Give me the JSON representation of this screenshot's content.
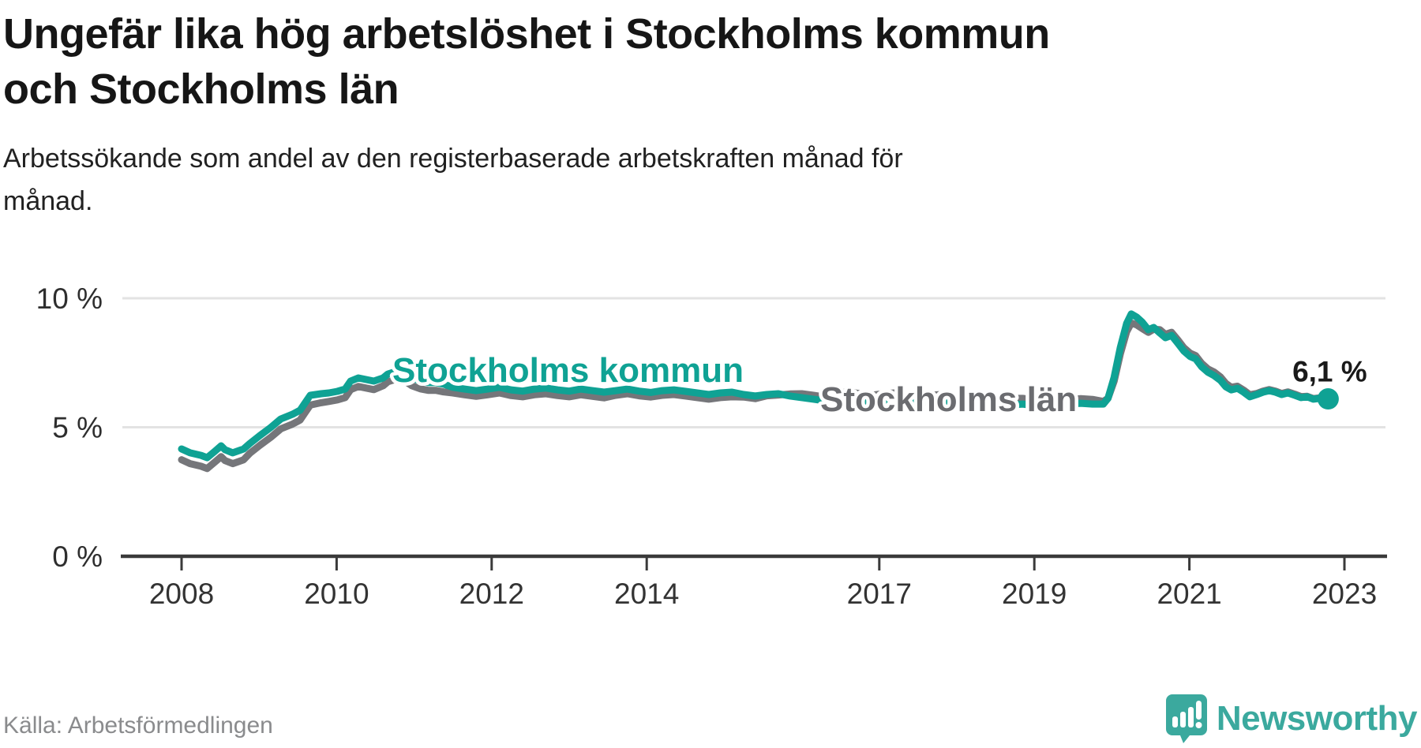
{
  "header": {
    "title_lines": [
      "Ungefär lika hög arbetslöshet i Stockholms kommun",
      "och Stockholms län"
    ],
    "subtitle_lines": [
      "Arbetssökande som andel av den registerbaserade arbetskraften månad för",
      "månad."
    ]
  },
  "footer": {
    "source": "Källa: Arbetsförmedlingen",
    "brand": "Newsworthy",
    "brand_color": "#3ba99e"
  },
  "chart_data": {
    "type": "line",
    "title": "Ungefär lika hög arbetslöshet i Stockholms kommun och Stockholms län",
    "xlabel": "",
    "ylabel": "",
    "unit": "%",
    "grid": "horizontal",
    "legend_position": "inline-labels",
    "x_ticks": [
      2008,
      2010,
      2012,
      2014,
      2017,
      2019,
      2021,
      2023
    ],
    "y_ticks": [
      0,
      5,
      10
    ],
    "y_tick_labels": [
      "0 %",
      "5 %",
      "10 %"
    ],
    "ylim": [
      0,
      11
    ],
    "xlim_years": [
      2007.7,
      2024.0
    ],
    "end_annotation": {
      "label": "6,1 %",
      "value": 6.1,
      "series": "Stockholms kommun"
    },
    "colors": {
      "kommun": "#0fa294",
      "lan": "#75767a",
      "grid": "#e3e3e3",
      "axis": "#3a3a3a",
      "tick_text": "#333333",
      "annotation_text": "#1a1a1a"
    },
    "series": [
      {
        "name": "Stockholms län",
        "color": "#75767a",
        "label_color": "#6b6c70",
        "points": [
          [
            2008.5,
            3.74
          ],
          [
            2008.61,
            3.59
          ],
          [
            2008.75,
            3.49
          ],
          [
            2008.83,
            3.4
          ],
          [
            2008.93,
            3.65
          ],
          [
            2009.01,
            3.86
          ],
          [
            2009.06,
            3.71
          ],
          [
            2009.16,
            3.59
          ],
          [
            2009.3,
            3.74
          ],
          [
            2009.38,
            3.99
          ],
          [
            2009.51,
            4.3
          ],
          [
            2009.65,
            4.61
          ],
          [
            2009.78,
            4.94
          ],
          [
            2009.93,
            5.12
          ],
          [
            2010.03,
            5.28
          ],
          [
            2010.09,
            5.55
          ],
          [
            2010.16,
            5.86
          ],
          [
            2010.3,
            5.95
          ],
          [
            2010.4,
            6.0
          ],
          [
            2010.51,
            6.06
          ],
          [
            2010.61,
            6.15
          ],
          [
            2010.68,
            6.46
          ],
          [
            2010.78,
            6.58
          ],
          [
            2010.88,
            6.52
          ],
          [
            2010.98,
            6.46
          ],
          [
            2011.1,
            6.61
          ],
          [
            2011.16,
            6.76
          ],
          [
            2011.26,
            6.86
          ],
          [
            2011.37,
            6.82
          ],
          [
            2011.47,
            6.61
          ],
          [
            2011.58,
            6.49
          ],
          [
            2011.68,
            6.43
          ],
          [
            2011.78,
            6.43
          ],
          [
            2011.88,
            6.37
          ],
          [
            2012,
            6.33
          ],
          [
            2012.15,
            6.26
          ],
          [
            2012.3,
            6.2
          ],
          [
            2012.45,
            6.26
          ],
          [
            2012.6,
            6.33
          ],
          [
            2012.75,
            6.23
          ],
          [
            2012.9,
            6.18
          ],
          [
            2013.05,
            6.26
          ],
          [
            2013.2,
            6.3
          ],
          [
            2013.35,
            6.23
          ],
          [
            2013.5,
            6.18
          ],
          [
            2013.65,
            6.26
          ],
          [
            2013.8,
            6.2
          ],
          [
            2013.95,
            6.14
          ],
          [
            2014.1,
            6.24
          ],
          [
            2014.25,
            6.3
          ],
          [
            2014.4,
            6.22
          ],
          [
            2014.55,
            6.17
          ],
          [
            2014.7,
            6.24
          ],
          [
            2014.85,
            6.27
          ],
          [
            2015,
            6.21
          ],
          [
            2015.15,
            6.15
          ],
          [
            2015.3,
            6.09
          ],
          [
            2015.45,
            6.15
          ],
          [
            2015.6,
            6.18
          ],
          [
            2015.75,
            6.17
          ],
          [
            2015.9,
            6.11
          ],
          [
            2016.05,
            6.22
          ],
          [
            2016.2,
            6.25
          ],
          [
            2016.35,
            6.29
          ],
          [
            2016.5,
            6.3
          ],
          [
            2016.65,
            6.24
          ],
          [
            2016.8,
            6.17
          ],
          [
            2016.95,
            6.33
          ],
          [
            2017.1,
            6.37
          ],
          [
            2017.25,
            6.3
          ],
          [
            2017.4,
            6.24
          ],
          [
            2017.55,
            6.3
          ],
          [
            2017.7,
            6.33
          ],
          [
            2017.85,
            6.24
          ],
          [
            2018,
            6.18
          ],
          [
            2018.15,
            6.24
          ],
          [
            2018.3,
            6.27
          ],
          [
            2018.45,
            6.18
          ],
          [
            2018.6,
            6.12
          ],
          [
            2018.75,
            6.18
          ],
          [
            2018.9,
            6.12
          ],
          [
            2019.05,
            6.06
          ],
          [
            2019.2,
            6.12
          ],
          [
            2019.35,
            6.12
          ],
          [
            2019.5,
            6.06
          ],
          [
            2019.65,
            6.03
          ],
          [
            2019.8,
            6.09
          ],
          [
            2019.96,
            6.08
          ],
          [
            2020.1,
            6.11
          ],
          [
            2020.25,
            6.08
          ],
          [
            2020.39,
            6.0
          ],
          [
            2020.45,
            6.12
          ],
          [
            2020.53,
            6.79
          ],
          [
            2020.61,
            7.85
          ],
          [
            2020.69,
            8.7
          ],
          [
            2020.75,
            9.04
          ],
          [
            2020.82,
            8.97
          ],
          [
            2020.89,
            8.83
          ],
          [
            2020.97,
            8.68
          ],
          [
            2021.04,
            8.8
          ],
          [
            2021.12,
            8.78
          ],
          [
            2021.19,
            8.6
          ],
          [
            2021.27,
            8.68
          ],
          [
            2021.35,
            8.39
          ],
          [
            2021.43,
            8.08
          ],
          [
            2021.51,
            7.87
          ],
          [
            2021.58,
            7.78
          ],
          [
            2021.66,
            7.47
          ],
          [
            2021.74,
            7.26
          ],
          [
            2021.82,
            7.14
          ],
          [
            2021.9,
            6.95
          ],
          [
            2021.97,
            6.7
          ],
          [
            2022.04,
            6.55
          ],
          [
            2022.12,
            6.59
          ],
          [
            2022.2,
            6.44
          ],
          [
            2022.28,
            6.26
          ],
          [
            2022.37,
            6.31
          ],
          [
            2022.45,
            6.4
          ],
          [
            2022.53,
            6.46
          ],
          [
            2022.61,
            6.4
          ],
          [
            2022.69,
            6.31
          ],
          [
            2022.77,
            6.37
          ],
          [
            2022.86,
            6.28
          ],
          [
            2022.94,
            6.19
          ],
          [
            2023.02,
            6.2
          ],
          [
            2023.1,
            6.11
          ],
          [
            2023.18,
            6.14
          ],
          [
            2023.29,
            6.1
          ]
        ]
      },
      {
        "name": "Stockholms kommun",
        "color": "#0fa294",
        "label_color": "#0fa294",
        "points": [
          [
            2008.5,
            4.16
          ],
          [
            2008.61,
            4.01
          ],
          [
            2008.75,
            3.91
          ],
          [
            2008.83,
            3.82
          ],
          [
            2008.93,
            4.07
          ],
          [
            2009.01,
            4.28
          ],
          [
            2009.06,
            4.13
          ],
          [
            2009.16,
            4.01
          ],
          [
            2009.3,
            4.16
          ],
          [
            2009.38,
            4.37
          ],
          [
            2009.51,
            4.68
          ],
          [
            2009.65,
            4.99
          ],
          [
            2009.78,
            5.32
          ],
          [
            2009.93,
            5.5
          ],
          [
            2010.03,
            5.66
          ],
          [
            2010.09,
            5.93
          ],
          [
            2010.16,
            6.24
          ],
          [
            2010.3,
            6.3
          ],
          [
            2010.4,
            6.33
          ],
          [
            2010.51,
            6.39
          ],
          [
            2010.61,
            6.48
          ],
          [
            2010.68,
            6.79
          ],
          [
            2010.78,
            6.91
          ],
          [
            2010.88,
            6.85
          ],
          [
            2010.98,
            6.79
          ],
          [
            2011.1,
            6.91
          ],
          [
            2011.16,
            7.06
          ],
          [
            2011.26,
            7.16
          ],
          [
            2011.37,
            7.12
          ],
          [
            2011.47,
            6.91
          ],
          [
            2011.58,
            6.79
          ],
          [
            2011.68,
            6.73
          ],
          [
            2011.78,
            6.73
          ],
          [
            2011.88,
            6.67
          ],
          [
            2012,
            6.55
          ],
          [
            2012.15,
            6.48
          ],
          [
            2012.3,
            6.42
          ],
          [
            2012.45,
            6.48
          ],
          [
            2012.6,
            6.55
          ],
          [
            2012.75,
            6.45
          ],
          [
            2012.9,
            6.4
          ],
          [
            2013.05,
            6.48
          ],
          [
            2013.2,
            6.52
          ],
          [
            2013.35,
            6.45
          ],
          [
            2013.5,
            6.4
          ],
          [
            2013.65,
            6.48
          ],
          [
            2013.8,
            6.42
          ],
          [
            2013.95,
            6.36
          ],
          [
            2014.1,
            6.42
          ],
          [
            2014.25,
            6.48
          ],
          [
            2014.4,
            6.4
          ],
          [
            2014.55,
            6.35
          ],
          [
            2014.7,
            6.42
          ],
          [
            2014.85,
            6.45
          ],
          [
            2015,
            6.39
          ],
          [
            2015.15,
            6.33
          ],
          [
            2015.3,
            6.27
          ],
          [
            2015.45,
            6.33
          ],
          [
            2015.6,
            6.36
          ],
          [
            2015.75,
            6.27
          ],
          [
            2015.9,
            6.21
          ],
          [
            2016.05,
            6.27
          ],
          [
            2016.2,
            6.3
          ],
          [
            2016.35,
            6.21
          ],
          [
            2016.5,
            6.15
          ],
          [
            2016.65,
            6.09
          ],
          [
            2016.8,
            6.02
          ],
          [
            2016.95,
            6.08
          ],
          [
            2017.1,
            6.12
          ],
          [
            2017.25,
            6.05
          ],
          [
            2017.4,
            5.99
          ],
          [
            2017.55,
            6.05
          ],
          [
            2017.7,
            6.08
          ],
          [
            2017.85,
            5.99
          ],
          [
            2018,
            5.93
          ],
          [
            2018.15,
            5.99
          ],
          [
            2018.3,
            6.02
          ],
          [
            2018.45,
            5.93
          ],
          [
            2018.6,
            5.87
          ],
          [
            2018.75,
            5.93
          ],
          [
            2018.9,
            5.87
          ],
          [
            2019.05,
            5.81
          ],
          [
            2019.2,
            5.87
          ],
          [
            2019.35,
            5.9
          ],
          [
            2019.5,
            5.84
          ],
          [
            2019.65,
            5.81
          ],
          [
            2019.8,
            5.87
          ],
          [
            2019.96,
            5.9
          ],
          [
            2020.1,
            5.93
          ],
          [
            2020.25,
            5.9
          ],
          [
            2020.39,
            5.9
          ],
          [
            2020.45,
            6.12
          ],
          [
            2020.53,
            6.94
          ],
          [
            2020.61,
            8.1
          ],
          [
            2020.69,
            9.02
          ],
          [
            2020.75,
            9.39
          ],
          [
            2020.82,
            9.27
          ],
          [
            2020.89,
            9.08
          ],
          [
            2020.97,
            8.78
          ],
          [
            2021.04,
            8.87
          ],
          [
            2021.12,
            8.65
          ],
          [
            2021.19,
            8.47
          ],
          [
            2021.27,
            8.56
          ],
          [
            2021.35,
            8.26
          ],
          [
            2021.43,
            7.95
          ],
          [
            2021.51,
            7.74
          ],
          [
            2021.58,
            7.65
          ],
          [
            2021.66,
            7.34
          ],
          [
            2021.74,
            7.13
          ],
          [
            2021.82,
            7.0
          ],
          [
            2021.9,
            6.82
          ],
          [
            2021.97,
            6.57
          ],
          [
            2022.04,
            6.45
          ],
          [
            2022.12,
            6.51
          ],
          [
            2022.2,
            6.36
          ],
          [
            2022.28,
            6.18
          ],
          [
            2022.37,
            6.27
          ],
          [
            2022.45,
            6.36
          ],
          [
            2022.53,
            6.42
          ],
          [
            2022.61,
            6.36
          ],
          [
            2022.69,
            6.27
          ],
          [
            2022.77,
            6.33
          ],
          [
            2022.86,
            6.24
          ],
          [
            2022.94,
            6.15
          ],
          [
            2023.02,
            6.18
          ],
          [
            2023.1,
            6.09
          ],
          [
            2023.18,
            6.12
          ],
          [
            2023.29,
            6.1
          ]
        ]
      }
    ]
  }
}
